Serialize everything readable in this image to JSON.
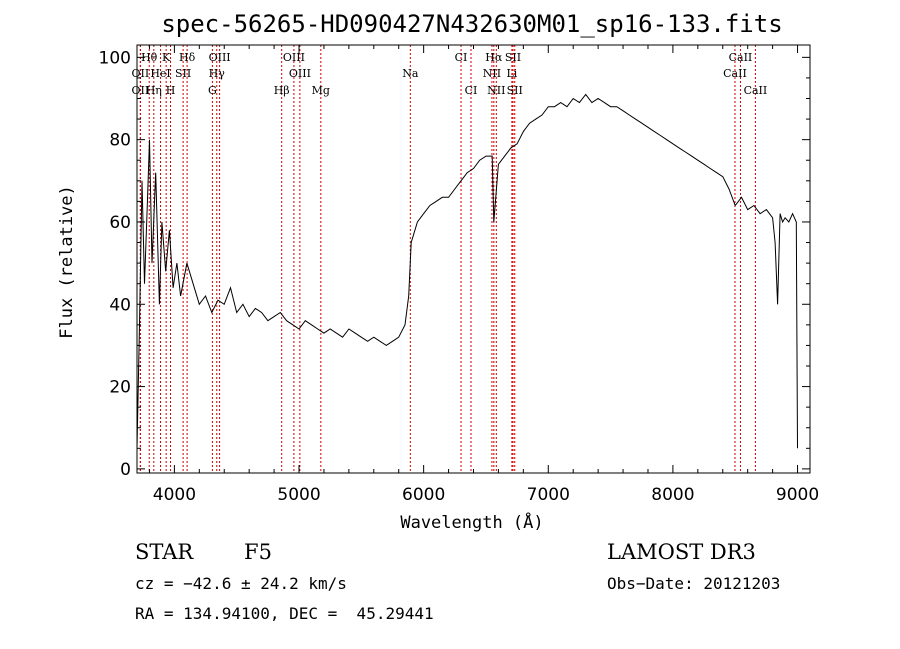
{
  "chart_data": {
    "type": "line",
    "title": "spec-56265-HD090427N432630M01_sp16-133.fits",
    "xlabel": "Wavelength (Å)",
    "ylabel": "Flux (relative)",
    "xlim": [
      3700,
      9100
    ],
    "ylim": [
      -1,
      103
    ],
    "xticks": [
      4000,
      5000,
      6000,
      7000,
      8000,
      9000
    ],
    "yticks": [
      0,
      20,
      40,
      60,
      80,
      100
    ],
    "grid": false,
    "series": [
      {
        "color": "#000000",
        "x": [
          3700,
          3720,
          3740,
          3760,
          3780,
          3800,
          3820,
          3850,
          3880,
          3900,
          3930,
          3960,
          3990,
          4020,
          4050,
          4100,
          4150,
          4200,
          4250,
          4300,
          4350,
          4400,
          4450,
          4500,
          4550,
          4600,
          4650,
          4700,
          4750,
          4800,
          4850,
          4900,
          4950,
          5000,
          5050,
          5100,
          5150,
          5200,
          5250,
          5300,
          5350,
          5400,
          5450,
          5500,
          5550,
          5600,
          5650,
          5700,
          5750,
          5800,
          5850,
          5880,
          5900,
          5950,
          6000,
          6050,
          6100,
          6150,
          6200,
          6250,
          6300,
          6350,
          6400,
          6450,
          6500,
          6550,
          6563,
          6600,
          6650,
          6700,
          6750,
          6800,
          6850,
          6900,
          6950,
          7000,
          7050,
          7100,
          7150,
          7200,
          7250,
          7300,
          7350,
          7400,
          7450,
          7500,
          7550,
          7600,
          7650,
          7700,
          7750,
          7800,
          7850,
          7900,
          7950,
          8000,
          8050,
          8100,
          8150,
          8200,
          8250,
          8300,
          8350,
          8400,
          8450,
          8500,
          8550,
          8600,
          8650,
          8700,
          8750,
          8800,
          8820,
          8840,
          8860,
          8880,
          8900,
          8930,
          8960,
          8990,
          9000
        ],
        "y": [
          5,
          35,
          70,
          45,
          62,
          80,
          50,
          72,
          40,
          60,
          48,
          58,
          44,
          50,
          42,
          50,
          45,
          40,
          42,
          38,
          41,
          40,
          44,
          38,
          40,
          37,
          39,
          38,
          36,
          37,
          38,
          36,
          35,
          34,
          36,
          35,
          34,
          33,
          34,
          33,
          32,
          34,
          33,
          32,
          31,
          32,
          31,
          30,
          31,
          32,
          35,
          42,
          55,
          60,
          62,
          64,
          65,
          66,
          66,
          68,
          70,
          72,
          73,
          75,
          76,
          76,
          60,
          74,
          76,
          78,
          79,
          82,
          84,
          85,
          86,
          88,
          88,
          89,
          88,
          90,
          89,
          91,
          89,
          90,
          89,
          88,
          88,
          87,
          86,
          85,
          84,
          83,
          82,
          81,
          80,
          79,
          78,
          77,
          76,
          75,
          74,
          73,
          72,
          71,
          68,
          64,
          66,
          63,
          64,
          62,
          63,
          61,
          55,
          40,
          62,
          60,
          61,
          60,
          62,
          60,
          5
        ]
      }
    ],
    "spectral_lines": [
      {
        "label": "Hθ",
        "x": 3798,
        "row": 1
      },
      {
        "label": "K",
        "x": 3934,
        "row": 1
      },
      {
        "label": "Hδ",
        "x": 4102,
        "row": 1
      },
      {
        "label": "OIII",
        "x": 4363,
        "row": 1
      },
      {
        "label": "OIII",
        "x": 4959,
        "row": 1
      },
      {
        "label": "CI",
        "x": 6300,
        "row": 1
      },
      {
        "label": "Hα",
        "x": 6563,
        "row": 1
      },
      {
        "label": "SII",
        "x": 6717,
        "row": 1
      },
      {
        "label": "CaII",
        "x": 8542,
        "row": 1
      },
      {
        "label": "OII",
        "x": 3727,
        "row": 2
      },
      {
        "label": "HeI",
        "x": 3889,
        "row": 2
      },
      {
        "label": "SII",
        "x": 4070,
        "row": 2
      },
      {
        "label": "Hγ",
        "x": 4340,
        "row": 2
      },
      {
        "label": "OIII",
        "x": 5007,
        "row": 2
      },
      {
        "label": "Na",
        "x": 5893,
        "row": 2
      },
      {
        "label": "NII",
        "x": 6548,
        "row": 2
      },
      {
        "label": "Li",
        "x": 6708,
        "row": 2
      },
      {
        "label": "CaII",
        "x": 8498,
        "row": 2
      },
      {
        "label": "OII",
        "x": 3727,
        "row": 3
      },
      {
        "label": "Hη",
        "x": 3835,
        "row": 3
      },
      {
        "label": "H",
        "x": 3969,
        "row": 3
      },
      {
        "label": "G",
        "x": 4305,
        "row": 3
      },
      {
        "label": "Hβ",
        "x": 4861,
        "row": 3
      },
      {
        "label": "Mg",
        "x": 5175,
        "row": 3
      },
      {
        "label": "CI",
        "x": 6380,
        "row": 3
      },
      {
        "label": "NII",
        "x": 6583,
        "row": 3
      },
      {
        "label": "SII",
        "x": 6731,
        "row": 3
      },
      {
        "label": "CaII",
        "x": 8662,
        "row": 3
      }
    ],
    "line_marker_color": "#cc0000"
  },
  "info": {
    "object_class": "STAR",
    "subclass": "F5",
    "survey": "LAMOST DR3",
    "redshift": "cz = −42.6 ± 24.2 km/s",
    "obs_date": "Obs−Date: 20121203",
    "coords": "RA = 134.94100, DEC =  45.29441"
  }
}
